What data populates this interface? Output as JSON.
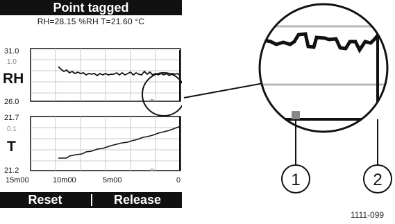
{
  "screen": {
    "title": "Point tagged",
    "readout": "RH=28.15 %RH  T=21.60 °C"
  },
  "rh_graph": {
    "label": "RH",
    "y_max": "31.0",
    "y_min": "26.0",
    "cursor_value": "1.0"
  },
  "t_graph": {
    "label": "T",
    "y_max": "21.7",
    "y_min": "21.2",
    "cursor_value": "0.1"
  },
  "time_axis": {
    "ticks": [
      "15m00",
      "10m00",
      "5m00",
      "0"
    ]
  },
  "softkeys": {
    "left_label": "Reset",
    "right_label": "Release"
  },
  "callouts": {
    "one": "1",
    "two": "2"
  },
  "figure_code": "1111-099"
}
